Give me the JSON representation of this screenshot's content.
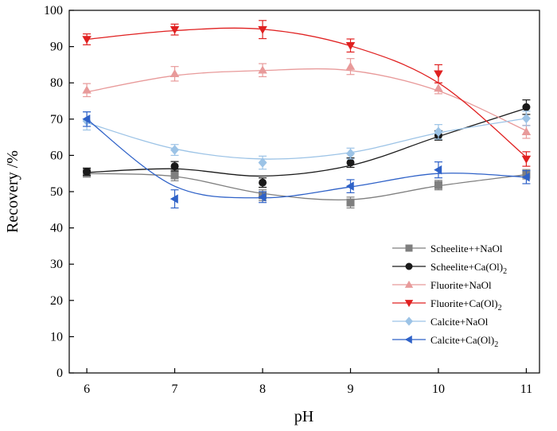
{
  "chart_data": {
    "type": "scatter",
    "title": "",
    "xlabel": "pH",
    "ylabel": "Recovery /%",
    "xlim": [
      5.8,
      11.15
    ],
    "ylim": [
      0,
      100
    ],
    "xticks": [
      6,
      7,
      8,
      9,
      10,
      11
    ],
    "yticks": [
      0,
      10,
      20,
      30,
      40,
      50,
      60,
      70,
      80,
      90,
      100
    ],
    "legend_position": "bottom-right",
    "grid": false,
    "x": [
      6,
      7,
      8,
      9,
      10,
      11
    ],
    "series": [
      {
        "name": "Scheelite++NaOl",
        "legend_main": "Scheelite++NaOl",
        "legend_sub": "",
        "legend_tail": "",
        "marker": "square",
        "color": "#7f7f7f",
        "values": [
          55.2,
          54.5,
          49.0,
          47.0,
          51.8,
          54.8
        ],
        "errors": [
          1.2,
          1.5,
          1.5,
          1.5,
          1.3,
          1.3
        ],
        "fit": [
          55.0,
          54.2,
          49.5,
          47.8,
          51.6,
          54.7
        ]
      },
      {
        "name": "Scheelite+Ca(Ol)2",
        "legend_main": "Scheelite+Ca(Ol)",
        "legend_sub": "2",
        "legend_tail": "",
        "marker": "circle",
        "color": "#1a1a1a",
        "values": [
          55.5,
          57.0,
          52.5,
          58.0,
          65.5,
          73.3
        ],
        "errors": [
          1.0,
          1.3,
          1.3,
          1.3,
          1.3,
          2.0
        ],
        "fit": [
          55.3,
          56.3,
          54.3,
          57.2,
          65.2,
          73.0
        ]
      },
      {
        "name": "Fluorite+NaOl",
        "legend_main": "Fluorite+NaOl",
        "legend_sub": "",
        "legend_tail": "",
        "marker": "triangle-up",
        "color": "#e89a9a",
        "values": [
          78.0,
          82.5,
          83.5,
          84.5,
          78.5,
          66.5
        ],
        "errors": [
          1.8,
          2.0,
          1.8,
          2.2,
          1.5,
          1.8
        ],
        "fit": [
          77.5,
          82.0,
          83.4,
          83.4,
          77.8,
          66.8
        ]
      },
      {
        "name": "Fluorite+Ca(Ol)2",
        "legend_main": "Fluorite+Ca(Ol)",
        "legend_sub": "2",
        "legend_tail": "",
        "marker": "triangle-down",
        "color": "#e02020",
        "values": [
          92.0,
          94.7,
          94.7,
          90.3,
          82.5,
          59.0
        ],
        "errors": [
          1.5,
          1.5,
          2.5,
          1.8,
          2.5,
          2.0
        ],
        "fit": [
          92.0,
          94.4,
          94.8,
          90.2,
          80.0,
          59.5
        ]
      },
      {
        "name": "Calcite+NaOl",
        "legend_main": "Calcite+NaOl",
        "legend_sub": "",
        "legend_tail": "",
        "marker": "diamond",
        "color": "#9cc3e6",
        "values": [
          69.5,
          61.5,
          58.0,
          60.5,
          66.5,
          70.2
        ],
        "errors": [
          2.5,
          1.5,
          1.8,
          1.5,
          2.0,
          2.0
        ],
        "fit": [
          69.0,
          61.8,
          59.0,
          60.8,
          66.2,
          70.2
        ]
      },
      {
        "name": "Calcite+Ca(Ol)2",
        "legend_main": "Calcite+Ca(Ol)",
        "legend_sub": "2",
        "legend_tail": "",
        "marker": "triangle-left",
        "color": "#2f62c8",
        "values": [
          70.0,
          48.0,
          48.5,
          51.5,
          56.0,
          54.0
        ],
        "errors": [
          2.0,
          2.5,
          1.5,
          1.8,
          2.2,
          1.8
        ],
        "fit": [
          70.0,
          51.5,
          48.3,
          51.3,
          55.0,
          54.0
        ]
      }
    ]
  }
}
